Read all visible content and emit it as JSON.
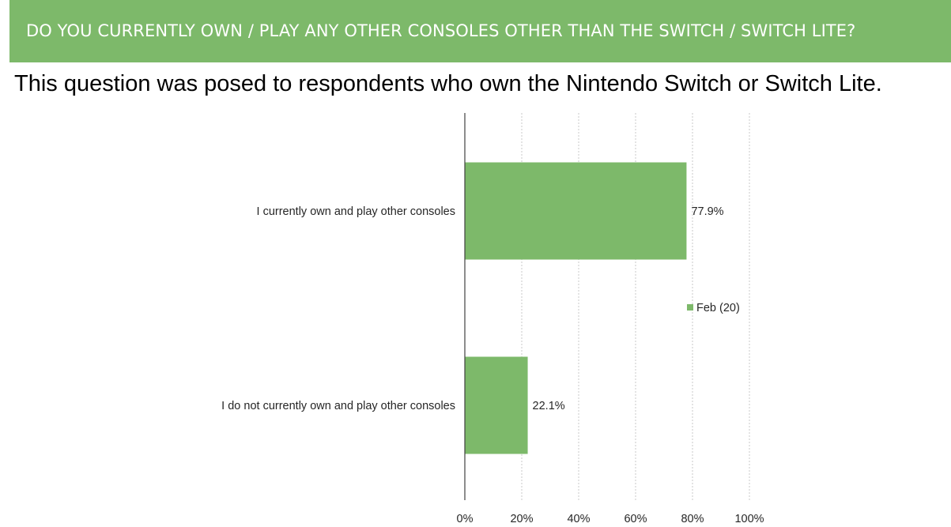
{
  "header": {
    "title": "DO YOU CURRENTLY OWN / PLAY ANY OTHER CONSOLES OTHER THAN THE SWITCH / SWITCH LITE?"
  },
  "subtitle": "This question was posed to respondents who own the Nintendo Switch or Switch Lite.",
  "colors": {
    "accent": "#7db96a",
    "bar": "#7db96a"
  },
  "chart_data": {
    "type": "bar",
    "orientation": "horizontal",
    "categories": [
      "I currently own and play other consoles",
      "I do not currently own and play other consoles"
    ],
    "series": [
      {
        "name": "Feb (20)",
        "values": [
          77.9,
          22.1
        ],
        "value_labels": [
          "77.9%",
          "22.1%"
        ],
        "color": "#7db96a"
      }
    ],
    "x_ticks": [
      "0%",
      "20%",
      "40%",
      "60%",
      "80%",
      "100%"
    ],
    "xlim": [
      0,
      100
    ],
    "grid": true,
    "legend": "right"
  }
}
